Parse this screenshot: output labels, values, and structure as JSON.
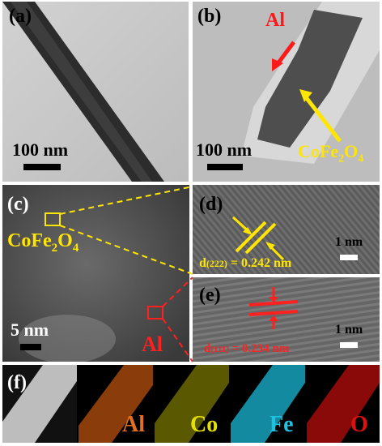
{
  "panels": {
    "a": {
      "label": "(a)",
      "scale": "100 nm"
    },
    "b": {
      "label": "(b)",
      "scale": "100 nm",
      "arrow_al": "Al",
      "arrow_cofe_base": "CoFe",
      "arrow_cofe_sub1": "2",
      "arrow_cofe_mid": "O",
      "arrow_cofe_sub2": "4"
    },
    "c": {
      "label": "(c)",
      "scale": "5 nm",
      "region_cofe_base": "CoFe",
      "region_cofe_sub1": "2",
      "region_cofe_mid": "O",
      "region_cofe_sub2": "4",
      "region_al": "Al"
    },
    "d": {
      "label": "(d)",
      "scale": "1 nm",
      "d_main": "d",
      "d_index": "(222)",
      "d_value": " = 0.242 nm"
    },
    "e": {
      "label": "(e)",
      "scale": "1 nm",
      "d_main": "d",
      "d_index": "(111)",
      "d_value": " = 0.234 nm"
    },
    "f": {
      "label": "(f)",
      "maps": [
        "Al",
        "Co",
        "Fe",
        "O"
      ]
    }
  },
  "colors": {
    "yellow": "#ffe600",
    "red": "#ff2020",
    "al": "#e07020",
    "co": "#e6e000",
    "fe": "#20c0e0",
    "o": "#e01010"
  }
}
